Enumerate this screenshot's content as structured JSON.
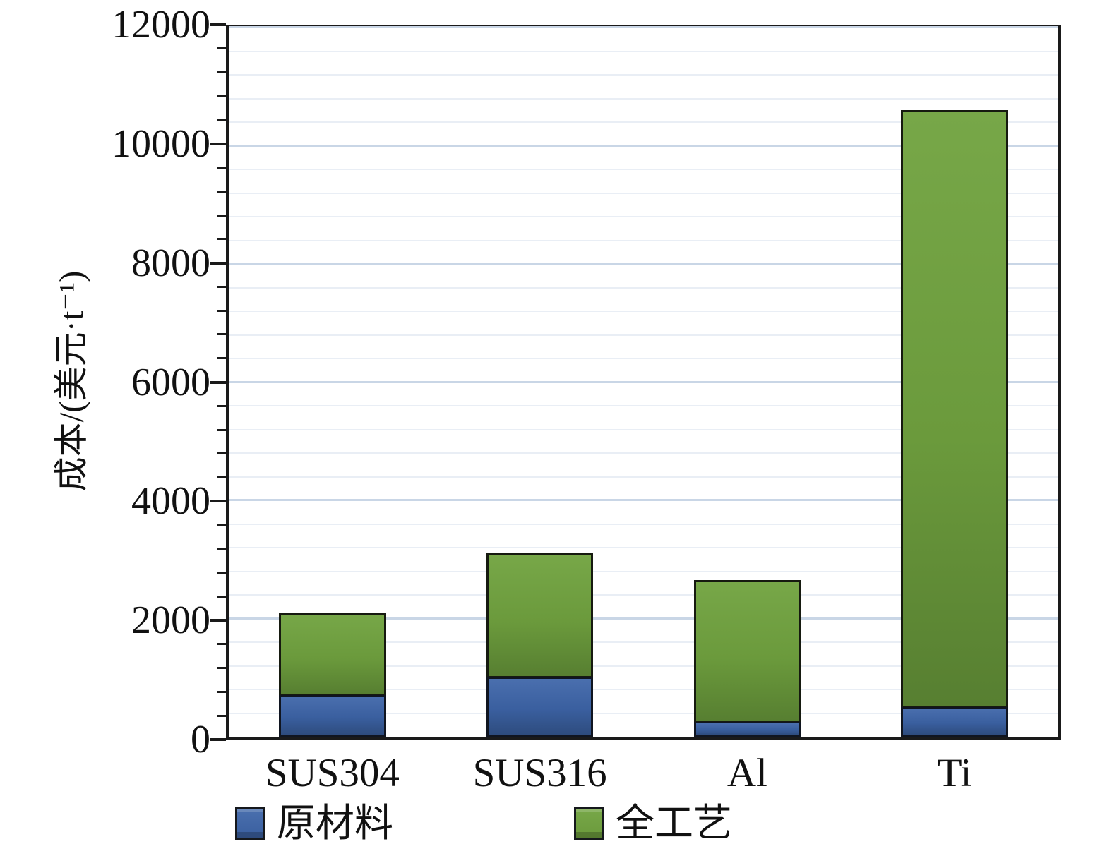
{
  "chart_data": {
    "type": "bar",
    "stacked": true,
    "title": "",
    "categories": [
      "SUS304",
      "SUS316",
      "Al",
      "Ti"
    ],
    "series": [
      {
        "name": "原材料",
        "color": "#3a5f9f",
        "color_light": "#4a6fae",
        "color_dark": "#2e4c7e",
        "values": [
          700,
          1000,
          250,
          500
        ]
      },
      {
        "name": "全工艺",
        "color": "#6b9a3c",
        "color_light": "#77a748",
        "color_dark": "#577f31",
        "values": [
          1400,
          2100,
          2400,
          10100
        ]
      }
    ],
    "stack_totals": [
      2100,
      3100,
      2650,
      10600
    ],
    "xlabel": "",
    "ylabel": "成本/(美元·t⁻¹)",
    "ylim": [
      0,
      12000
    ],
    "yticks": [
      0,
      2000,
      4000,
      6000,
      8000,
      10000,
      12000
    ],
    "ytick_major_step": 2000,
    "ytick_minor_step": 400,
    "grid": "horizontal-minor-and-major",
    "legend_position": "bottom",
    "bar_width_fraction": 0.515,
    "colors": {
      "background": "#ffffff",
      "axis_frame": "#1a1a1a",
      "gridline_major": "#c9d6e6",
      "gridline_minor": "#e9eef5",
      "text": "#111111"
    }
  }
}
